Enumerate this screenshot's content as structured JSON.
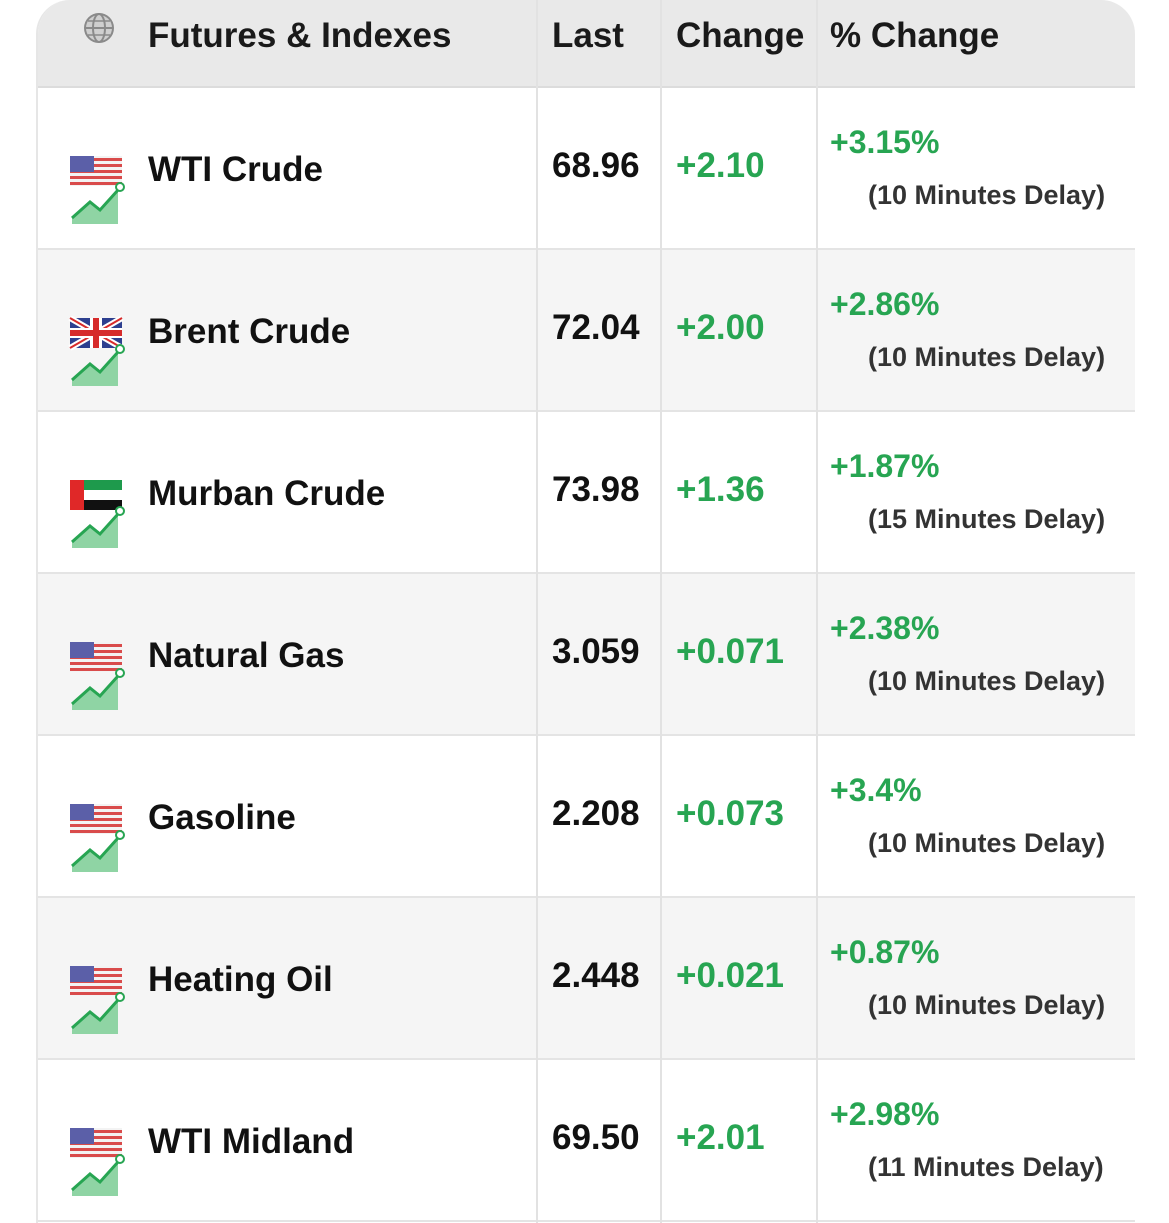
{
  "header": {
    "title": "Futures & Indexes",
    "last": "Last",
    "change": "Change",
    "pct_change": "% Change",
    "icon": "globe-icon"
  },
  "rows": [
    {
      "name": "WTI Crude",
      "flag": "us",
      "last": "68.96",
      "change": "+2.10",
      "pct": "+3.15%",
      "delay": "(10 Minutes Delay)"
    },
    {
      "name": "Brent Crude",
      "flag": "uk",
      "last": "72.04",
      "change": "+2.00",
      "pct": "+2.86%",
      "delay": "(10 Minutes Delay)"
    },
    {
      "name": "Murban Crude",
      "flag": "uae",
      "last": "73.98",
      "change": "+1.36",
      "pct": "+1.87%",
      "delay": "(15 Minutes Delay)"
    },
    {
      "name": "Natural Gas",
      "flag": "us",
      "last": "3.059",
      "change": "+0.071",
      "pct": "+2.38%",
      "delay": "(10 Minutes Delay)"
    },
    {
      "name": "Gasoline",
      "flag": "us",
      "last": "2.208",
      "change": "+0.073",
      "pct": "+3.4%",
      "delay": "(10 Minutes Delay)"
    },
    {
      "name": "Heating Oil",
      "flag": "us",
      "last": "2.448",
      "change": "+0.021",
      "pct": "+0.87%",
      "delay": "(10 Minutes Delay)"
    },
    {
      "name": "WTI Midland",
      "flag": "us",
      "last": "69.50",
      "change": "+2.01",
      "pct": "+2.98%",
      "delay": "(11 Minutes Delay)"
    }
  ],
  "colors": {
    "positive": "#27a552",
    "header_bg": "#e9e9e9",
    "alt_row_bg": "#f5f5f5"
  }
}
